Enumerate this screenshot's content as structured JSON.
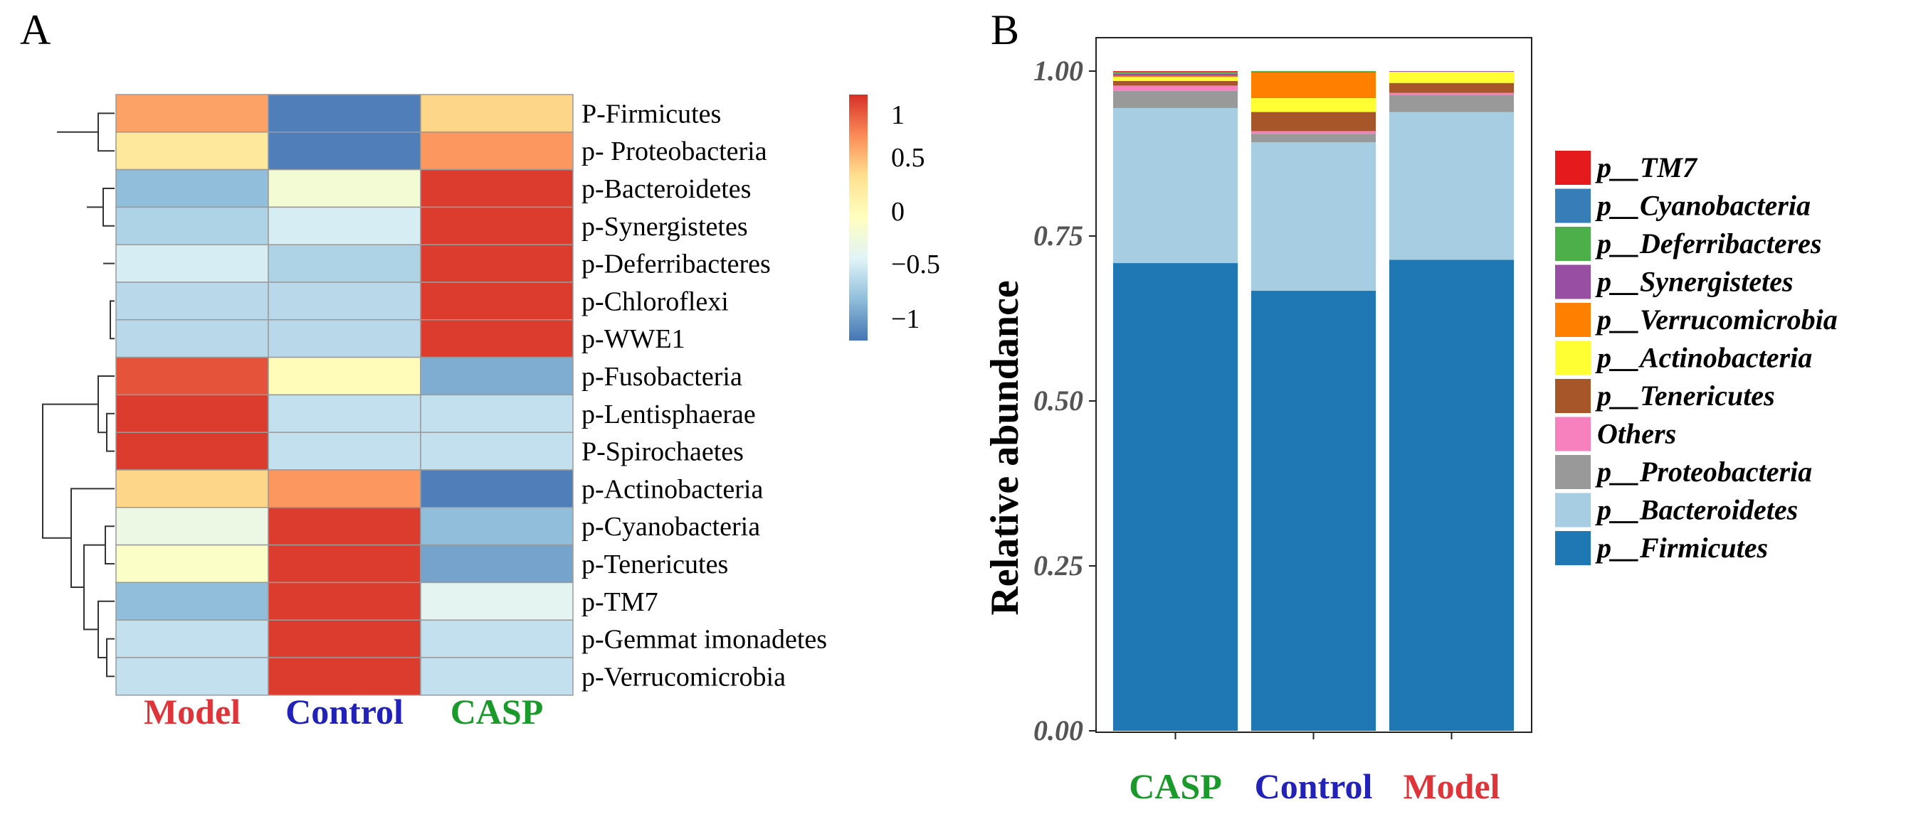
{
  "panels": {
    "a_label": "A",
    "b_label": "B"
  },
  "chart_data": [
    {
      "type": "heatmap",
      "title": "",
      "columns": [
        {
          "label": "Model",
          "color": "#e0343b"
        },
        {
          "label": "Control",
          "color": "#2222bb"
        },
        {
          "label": "CASP",
          "color": "#1a9a2a"
        }
      ],
      "rows": [
        "P-Firmicutes",
        "p- Proteobacteria",
        "p-Bacteroidetes",
        "p-Synergistetes",
        "p-Deferribacteres",
        "p-Chloroflexi",
        "p-WWE1",
        "p-Fusobacteria",
        "p-Lentisphaerae",
        "P-Spirochaetes",
        "p-Actinobacteria",
        "p-Cyanobacteria",
        "p-Tenericutes",
        "p-TM7",
        "p-Gemmat imonadetes",
        "p-Verrucomicrobia"
      ],
      "values": [
        [
          0.7,
          -1.15,
          0.45
        ],
        [
          0.3,
          -1.15,
          0.75
        ],
        [
          -0.8,
          -0.15,
          1.15
        ],
        [
          -0.65,
          -0.45,
          1.15
        ],
        [
          -0.45,
          -0.65,
          1.15
        ],
        [
          -0.6,
          -0.6,
          1.15
        ],
        [
          -0.6,
          -0.6,
          1.15
        ],
        [
          1.05,
          0.05,
          -0.9
        ],
        [
          1.15,
          -0.55,
          -0.55
        ],
        [
          1.15,
          -0.55,
          -0.55
        ],
        [
          0.45,
          0.75,
          -1.15
        ],
        [
          -0.25,
          1.15,
          -0.8
        ],
        [
          -0.05,
          1.15,
          -0.95
        ],
        [
          -0.8,
          1.15,
          -0.35
        ],
        [
          -0.55,
          1.15,
          -0.55
        ],
        [
          -0.55,
          1.15,
          -0.55
        ]
      ],
      "legend": {
        "ticks": [
          "1",
          "0.5",
          "0",
          "−0.5",
          "−1"
        ],
        "range": [
          -1.2,
          1.2
        ],
        "stops": [
          "#4575b4",
          "#91bfdb",
          "#e0f3f8",
          "#ffffbf",
          "#fee090",
          "#fc8d59",
          "#d73027"
        ]
      },
      "dendrogram": "row clustering"
    },
    {
      "type": "bar",
      "stacked": true,
      "title": "",
      "ylabel": "Relative abundance",
      "xlabel": "",
      "ylim": [
        0,
        1
      ],
      "yticks": [
        "0.00",
        "0.25",
        "0.50",
        "0.75",
        "1.00"
      ],
      "categories": [
        {
          "label": "CASP",
          "color": "#1a9a2a"
        },
        {
          "label": "Control",
          "color": "#2222bb"
        },
        {
          "label": "Model",
          "color": "#e0343b"
        }
      ],
      "series": [
        {
          "name": "p__Firmicutes",
          "color": "#1f78b4",
          "values": [
            0.709,
            0.667,
            0.714
          ]
        },
        {
          "name": "p__Bacteroidetes",
          "color": "#a6cde2",
          "values": [
            0.235,
            0.225,
            0.224
          ]
        },
        {
          "name": "p__Proteobacteria",
          "color": "#999999",
          "values": [
            0.026,
            0.013,
            0.026
          ]
        },
        {
          "name": "Others",
          "color": "#f781bf",
          "values": [
            0.008,
            0.004,
            0.003
          ]
        },
        {
          "name": "p__Tenericutes",
          "color": "#a65628",
          "values": [
            0.007,
            0.029,
            0.015
          ]
        },
        {
          "name": "p__Actinobacteria",
          "color": "#ffff33",
          "values": [
            0.006,
            0.021,
            0.017
          ]
        },
        {
          "name": "p__Verrucomicrobia",
          "color": "#ff7f00",
          "values": [
            0.002,
            0.039,
            0.0
          ]
        },
        {
          "name": "p__Synergistetes",
          "color": "#984ea3",
          "values": [
            0.003,
            0.001,
            0.001
          ]
        },
        {
          "name": "p__Deferribacteres",
          "color": "#4daf4a",
          "values": [
            0.002,
            0.001,
            0.0
          ]
        },
        {
          "name": "p__Cyanobacteria",
          "color": "#377eb8",
          "values": [
            0.001,
            0.0,
            0.0
          ]
        },
        {
          "name": "p__TM7",
          "color": "#e41a1c",
          "values": [
            0.001,
            0.0,
            0.0
          ]
        }
      ],
      "legend_order": [
        "p__TM7",
        "p__Cyanobacteria",
        "p__Deferribacteres",
        "p__Synergistetes",
        "p__Verrucomicrobia",
        "p__Actinobacteria",
        "p__Tenericutes",
        "Others",
        "p__Proteobacteria",
        "p__Bacteroidetes",
        "p__Firmicutes"
      ],
      "legend_placement": "right"
    }
  ]
}
